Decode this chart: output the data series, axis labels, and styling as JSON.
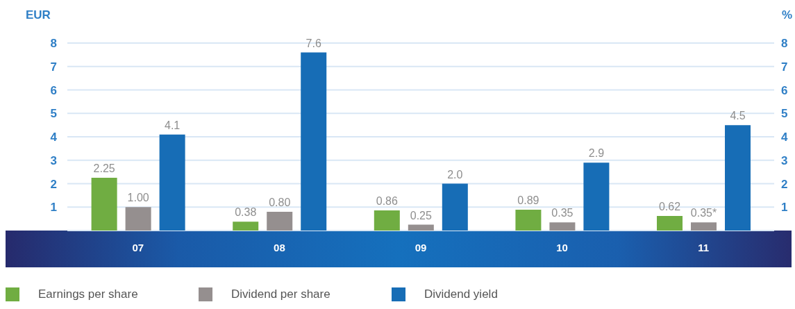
{
  "chart_data": {
    "type": "bar",
    "ylabel": "EUR",
    "y2label": "%",
    "categories": [
      "07",
      "08",
      "09",
      "10",
      "11"
    ],
    "series": [
      {
        "name": "Earnings per share",
        "color": "#70ad42",
        "values": [
          2.25,
          0.38,
          0.86,
          0.89,
          0.62
        ],
        "value_labels": [
          "2.25",
          "0.38",
          "0.86",
          "0.89",
          "0.62"
        ]
      },
      {
        "name": "Dividend per share",
        "color": "#958f8f",
        "values": [
          1.0,
          0.8,
          0.25,
          0.35,
          0.35
        ],
        "value_labels": [
          "1.00",
          "0.80",
          "0.25",
          "0.35",
          "0.35*"
        ]
      },
      {
        "name": "Dividend yield",
        "color": "#176db6",
        "axis": "y2",
        "values": [
          4.1,
          7.6,
          2.0,
          2.9,
          4.5
        ],
        "value_labels": [
          "4.1",
          "7.6",
          "2.0",
          "2.9",
          "4.5"
        ]
      }
    ],
    "ylim": [
      0,
      8
    ],
    "yticks": [
      1,
      2,
      3,
      4,
      5,
      6,
      7,
      8
    ],
    "y2lim": [
      0,
      8
    ],
    "y2ticks": [
      1,
      2,
      3,
      4,
      5,
      6,
      7,
      8
    ],
    "grid": "y",
    "legend": "bottom left"
  }
}
